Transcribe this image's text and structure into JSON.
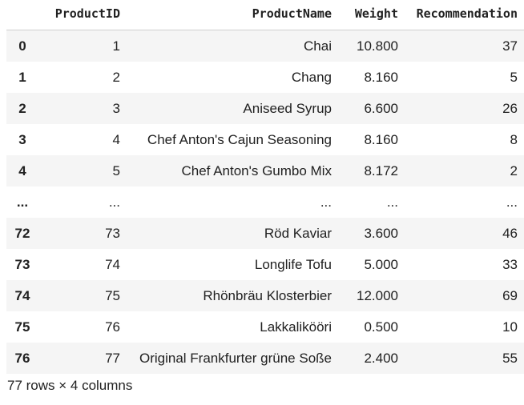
{
  "dataframe": {
    "columns": [
      "ProductID",
      "ProductName",
      "Weight",
      "Recommendation"
    ],
    "rows": [
      {
        "index": "0",
        "ProductID": "1",
        "ProductName": "Chai",
        "Weight": "10.800",
        "Recommendation": "37"
      },
      {
        "index": "1",
        "ProductID": "2",
        "ProductName": "Chang",
        "Weight": "8.160",
        "Recommendation": "5"
      },
      {
        "index": "2",
        "ProductID": "3",
        "ProductName": "Aniseed Syrup",
        "Weight": "6.600",
        "Recommendation": "26"
      },
      {
        "index": "3",
        "ProductID": "4",
        "ProductName": "Chef Anton's Cajun Seasoning",
        "Weight": "8.160",
        "Recommendation": "8"
      },
      {
        "index": "4",
        "ProductID": "5",
        "ProductName": "Chef Anton's Gumbo Mix",
        "Weight": "8.172",
        "Recommendation": "2"
      },
      {
        "index": "...",
        "ProductID": "...",
        "ProductName": "...",
        "Weight": "...",
        "Recommendation": "..."
      },
      {
        "index": "72",
        "ProductID": "73",
        "ProductName": "Röd Kaviar",
        "Weight": "3.600",
        "Recommendation": "46"
      },
      {
        "index": "73",
        "ProductID": "74",
        "ProductName": "Longlife Tofu",
        "Weight": "5.000",
        "Recommendation": "33"
      },
      {
        "index": "74",
        "ProductID": "75",
        "ProductName": "Rhönbräu Klosterbier",
        "Weight": "12.000",
        "Recommendation": "69"
      },
      {
        "index": "75",
        "ProductID": "76",
        "ProductName": "Lakkalikööri",
        "Weight": "0.500",
        "Recommendation": "10"
      },
      {
        "index": "76",
        "ProductID": "77",
        "ProductName": "Original Frankfurter grüne Soße",
        "Weight": "2.400",
        "Recommendation": "55"
      }
    ],
    "shape_note": "77 rows × 4 columns"
  },
  "colors": {
    "stripe": "#f5f5f5",
    "text": "#212121",
    "header_border": "#d0d0d0"
  }
}
